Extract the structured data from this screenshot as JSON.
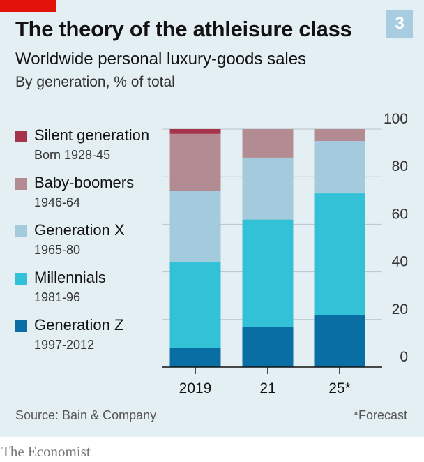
{
  "header": {
    "title": "The theory of the athleisure class",
    "badge": "3",
    "subtitle": "Worldwide personal luxury-goods sales",
    "subsubtitle": "By generation, % of total"
  },
  "footer": {
    "source": "Source: Bain & Company",
    "note": "*Forecast",
    "logo": "The Economist"
  },
  "colors": {
    "accent_red": "#e3120b",
    "silent": "#a5334b",
    "boomers": "#b38c93",
    "genx": "#a4cadd",
    "millennials": "#32c1d6",
    "genz": "#096ea3"
  },
  "chart_data": {
    "type": "bar",
    "stacked": true,
    "categories": [
      "2019",
      "21",
      "25*"
    ],
    "series": [
      {
        "name": "Generation Z",
        "years": "1997-2012",
        "color": "#096ea3",
        "values": [
          8,
          17,
          22
        ]
      },
      {
        "name": "Millennials",
        "years": "1981-96",
        "color": "#32c1d6",
        "values": [
          36,
          45,
          51
        ]
      },
      {
        "name": "Generation X",
        "years": "1965-80",
        "color": "#a4cadd",
        "values": [
          30,
          26,
          22
        ]
      },
      {
        "name": "Baby-boomers",
        "years": "1946-64",
        "color": "#b38c93",
        "values": [
          24,
          12,
          5
        ]
      },
      {
        "name": "Silent generation",
        "years": "Born 1928-45",
        "color": "#a5334b",
        "values": [
          2,
          0,
          0
        ]
      }
    ],
    "yticks": [
      0,
      20,
      40,
      60,
      80,
      100
    ],
    "ylim": [
      0,
      100
    ],
    "grid": true,
    "y_axis_side": "right",
    "legend_position": "left"
  }
}
